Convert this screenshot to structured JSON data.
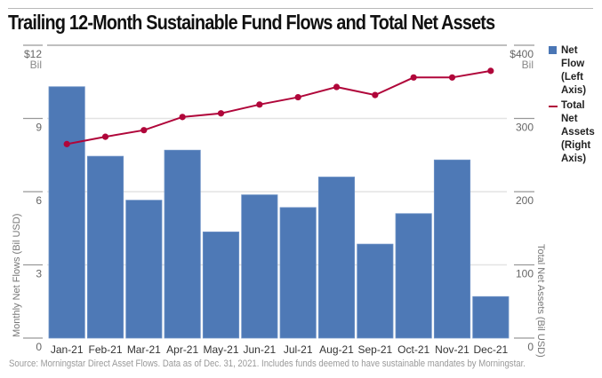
{
  "chart_data": {
    "type": "bar",
    "title": "Trailing 12-Month Sustainable Fund Flows and Total Net Assets",
    "categories": [
      "Jan-21",
      "Feb-21",
      "Mar-21",
      "Apr-21",
      "May-21",
      "Jun-21",
      "Jul-21",
      "Aug-21",
      "Sep-21",
      "Oct-21",
      "Nov-21",
      "Dec-21"
    ],
    "series": [
      {
        "name": "Net Flow (Left Axis)",
        "type": "bar",
        "axis": "left",
        "color": "#4a76b5",
        "values": [
          10.3,
          7.45,
          5.65,
          7.7,
          4.35,
          5.87,
          5.35,
          6.6,
          3.85,
          5.1,
          7.3,
          1.7
        ]
      },
      {
        "name": "Total Net Assets (Right Axis)",
        "type": "line",
        "axis": "right",
        "color": "#b0063a",
        "values": [
          265,
          275,
          284,
          302,
          307,
          319,
          329,
          343,
          332,
          356,
          356,
          365
        ]
      }
    ],
    "left_axis": {
      "label": "Monthly Net Flows (Bil USD)",
      "ylim": [
        0,
        12
      ],
      "ticks": [
        "0",
        "3",
        "6",
        "9",
        "$12"
      ],
      "unit": "Bil"
    },
    "right_axis": {
      "label": "Total Net Assets (Bil USD)",
      "ylim": [
        0,
        400
      ],
      "ticks": [
        "0",
        "100",
        "200",
        "300",
        "$400"
      ],
      "unit": "Bil"
    },
    "grid": true,
    "legend_position": "right",
    "legend": [
      {
        "lines": [
          "Net Flow",
          "(Left",
          "Axis)"
        ]
      },
      {
        "lines": [
          "Total Net",
          "Assets",
          "(Right",
          "Axis)"
        ]
      }
    ],
    "source": "Source: Morningstar Direct Asset Flows. Data as of Dec. 31, 2021. Includes funds deemed to have sustainable mandates by Morningstar."
  }
}
